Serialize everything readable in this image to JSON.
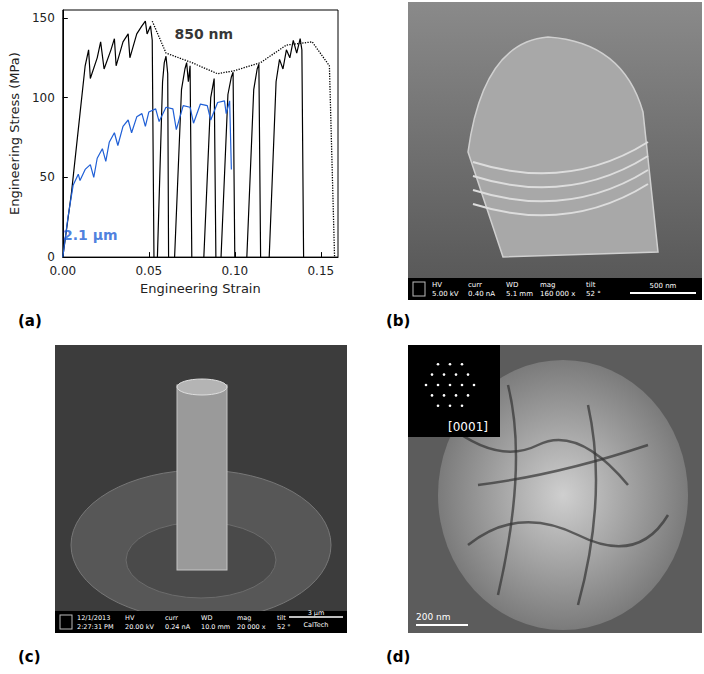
{
  "chart_data": {
    "type": "line",
    "x_label": "Engineering Strain",
    "y_label": "Engineering Stress (MPa)",
    "xlim": [
      0,
      0.16
    ],
    "xticks": [
      {
        "value": 0,
        "label": "0.00"
      },
      0.05,
      {
        "value": 0.1,
        "label": "0.10"
      },
      0.15
    ],
    "ylim": [
      0,
      155
    ],
    "yticks": [
      0,
      50,
      100,
      150
    ],
    "grid": false,
    "series": [
      {
        "name": "850 nm",
        "color": "#000000",
        "line_style": "solid",
        "x": [
          0,
          0.005,
          0.01,
          0.013,
          0.015,
          0.016,
          0.02,
          0.022,
          0.024,
          0.028,
          0.03,
          0.031,
          0.035,
          0.038,
          0.039,
          0.043,
          0.046,
          0.048,
          0.049,
          0.051,
          0.052,
          0.053,
          0.054,
          0.055,
          0.058,
          0.059,
          0.06,
          0.061,
          0.0615,
          0.063,
          0.065,
          0.069,
          0.071,
          0.072,
          0.073,
          0.074,
          0.075,
          0.078,
          0.082,
          0.086,
          0.088,
          0.089,
          0.09,
          0.092,
          0.096,
          0.098,
          0.099,
          0.1,
          0.103,
          0.107,
          0.111,
          0.113,
          0.114,
          0.115,
          0.117,
          0.12,
          0.124,
          0.126,
          0.128,
          0.13,
          0.132,
          0.134,
          0.136,
          0.138,
          0.139,
          0.14
        ],
        "values": [
          0,
          40,
          90,
          120,
          130,
          112,
          125,
          135,
          118,
          130,
          137,
          120,
          135,
          140,
          125,
          140,
          145,
          148,
          140,
          145,
          136,
          0,
          null,
          0,
          110,
          122,
          126,
          115,
          0,
          null,
          0,
          105,
          118,
          122,
          110,
          120,
          0,
          null,
          0,
          100,
          112,
          0,
          null,
          0,
          102,
          113,
          116,
          0,
          null,
          0,
          105,
          118,
          121,
          0,
          null,
          0,
          110,
          124,
          118,
          130,
          125,
          136,
          128,
          137,
          130,
          0
        ]
      },
      {
        "name": "2.1 µm",
        "color": "#1f5fd6",
        "line_style": "solid",
        "x": [
          0,
          0.003,
          0.006,
          0.009,
          0.01,
          0.013,
          0.016,
          0.018,
          0.02,
          0.023,
          0.025,
          0.027,
          0.03,
          0.032,
          0.035,
          0.038,
          0.04,
          0.043,
          0.046,
          0.048,
          0.05,
          0.054,
          0.056,
          0.06,
          0.064,
          0.066,
          0.07,
          0.074,
          0.076,
          0.08,
          0.084,
          0.086,
          0.09,
          0.094,
          0.095,
          0.097,
          0.098
        ],
        "values": [
          0,
          25,
          45,
          52,
          48,
          55,
          58,
          50,
          62,
          68,
          60,
          72,
          78,
          70,
          82,
          86,
          78,
          88,
          90,
          82,
          91,
          93,
          85,
          94,
          93,
          80,
          95,
          94,
          84,
          96,
          95,
          86,
          97,
          98,
          90,
          98,
          55
        ]
      },
      {
        "color": "#000000",
        "line_style": "dotted",
        "x": [
          0.052,
          0.06,
          0.075,
          0.09,
          0.1,
          0.115,
          0.13,
          0.145,
          0.155,
          0.158
        ],
        "values": [
          148,
          128,
          122,
          115,
          117,
          122,
          133,
          135,
          120,
          0
        ]
      }
    ],
    "annotations": [
      {
        "text": "850 nm",
        "x": 0.082,
        "y": 140,
        "color": "#000000"
      },
      {
        "text": "2.1 µm",
        "x": 0.016,
        "y": 14,
        "color": "#1f5fd6"
      }
    ]
  },
  "panel_labels": [
    "(a)",
    "(b)",
    "(c)",
    "(d)"
  ],
  "images": {
    "b": {
      "info": [
        {
          "head": "HV",
          "value": "5.00 kV"
        },
        {
          "head": "curr",
          "value": "0.40 nA"
        },
        {
          "head": "WD",
          "value": "5.1 mm"
        },
        {
          "head": "mag",
          "value": "160 000 x"
        },
        {
          "head": "tilt",
          "value": "52 °"
        }
      ],
      "scale_bar": "500 nm"
    },
    "c": {
      "info": [
        {
          "head": "12/1/2013",
          "value": "2:27:31 PM"
        },
        {
          "head": "HV",
          "value": "20.00 kV"
        },
        {
          "head": "curr",
          "value": "0.24 nA"
        },
        {
          "head": "WD",
          "value": "10.0 mm"
        },
        {
          "head": "mag",
          "value": "20 000 x"
        },
        {
          "head": "tilt",
          "value": "52 °"
        }
      ],
      "scale_bar": "3 µm",
      "footer": "CalTech"
    },
    "d": {
      "zone_axis": "[0001]",
      "scale_bar": "200 nm"
    }
  }
}
